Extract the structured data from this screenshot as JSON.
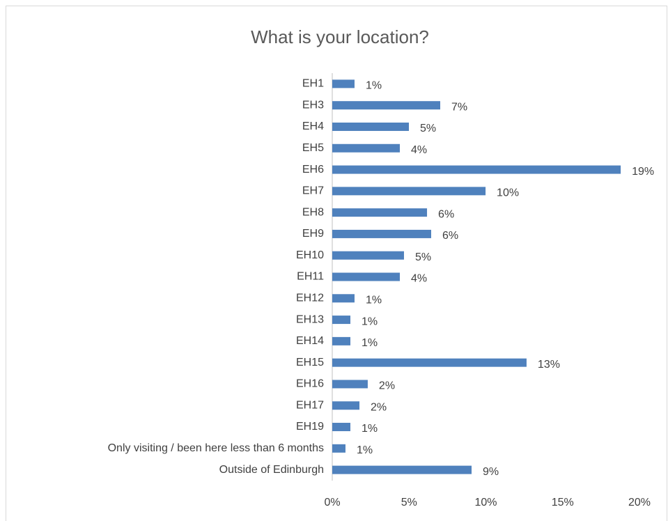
{
  "chart_data": {
    "type": "bar",
    "orientation": "horizontal",
    "title": "What is your location?",
    "categories": [
      "EH1",
      "EH3",
      "EH4",
      "EH5",
      "EH6",
      "EH7",
      "EH8",
      "EH9",
      "EH10",
      "EH11",
      "EH12",
      "EH13",
      "EH14",
      "EH15",
      "EH16",
      "EH17",
      "EH19",
      "Only visiting / been here less than 6 months",
      "Outside of Edinburgh"
    ],
    "values": [
      1.45,
      7.03,
      4.99,
      4.4,
      18.78,
      9.98,
      6.17,
      6.44,
      4.67,
      4.4,
      1.45,
      1.18,
      1.18,
      12.65,
      2.31,
      1.77,
      1.18,
      0.86,
      9.07
    ],
    "value_labels": [
      "1%",
      "7%",
      "5%",
      "4%",
      "19%",
      "10%",
      "6%",
      "6%",
      "5%",
      "4%",
      "1%",
      "1%",
      "1%",
      "13%",
      "2%",
      "2%",
      "1%",
      "1%",
      "9%"
    ],
    "color": "#4f81bd",
    "xlim": [
      0,
      20
    ],
    "xticks": [
      {
        "value": 0,
        "label": "0%"
      },
      {
        "value": 5,
        "label": "5%"
      },
      {
        "value": 10,
        "label": "10%"
      },
      {
        "value": 15,
        "label": "15%"
      },
      {
        "value": 20,
        "label": "20%"
      }
    ],
    "grid": false
  }
}
